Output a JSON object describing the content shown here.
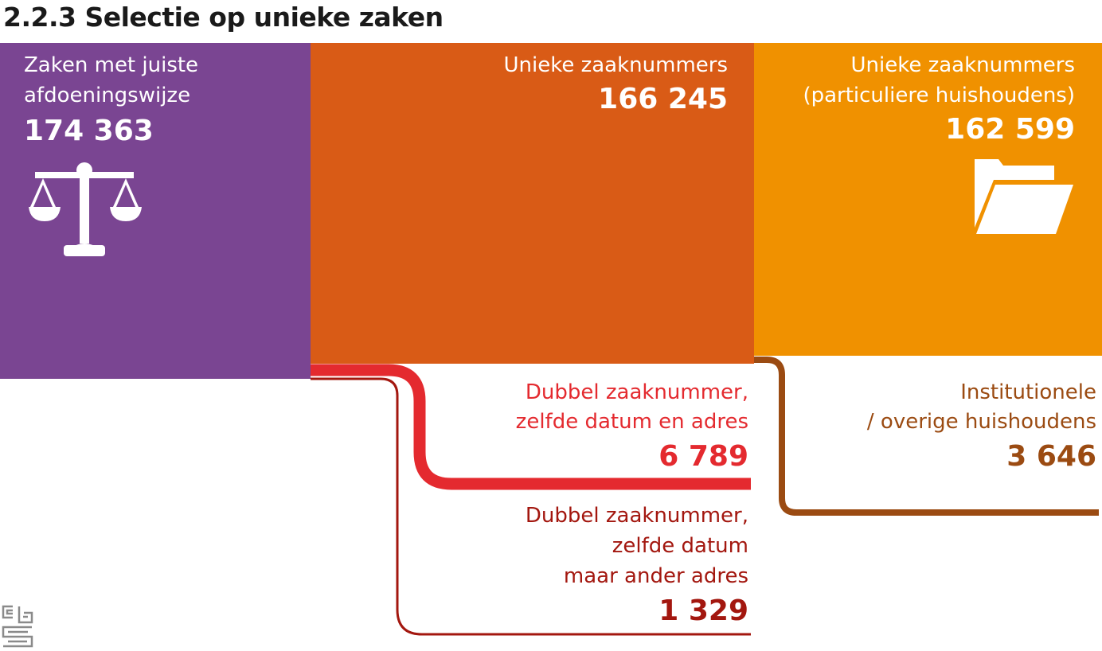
{
  "title": "2.2.3 Selectie op unieke zaken",
  "boxes": {
    "juiste": {
      "label": [
        "Zaken met juiste",
        "afdoeningswijze"
      ],
      "value": "174 363",
      "color": "#7a4592",
      "icon": "scales-icon"
    },
    "uniek": {
      "label": [
        "Unieke zaaknummers"
      ],
      "value": "166 245",
      "color": "#d95b16"
    },
    "particulier": {
      "label": [
        "Unieke zaaknummers",
        "(particuliere huishoudens)"
      ],
      "value": "162 599",
      "color": "#f09100",
      "icon": "folder-icon"
    }
  },
  "flows": {
    "zelfde_adres": {
      "label": [
        "Dubbel zaaknummer,",
        "zelfde datum en adres"
      ],
      "value": "6 789",
      "color": "#e42a2f"
    },
    "ander_adres": {
      "label": [
        "Dubbel zaaknummer,",
        "zelfde datum",
        "maar ander adres"
      ],
      "value": "1 329",
      "color": "#a3170f"
    },
    "institutioneel": {
      "label": [
        "Institutionele",
        "/ overige huishoudens"
      ],
      "value": "3 646",
      "color": "#9b4b12"
    }
  },
  "logo": "cbs-logo"
}
